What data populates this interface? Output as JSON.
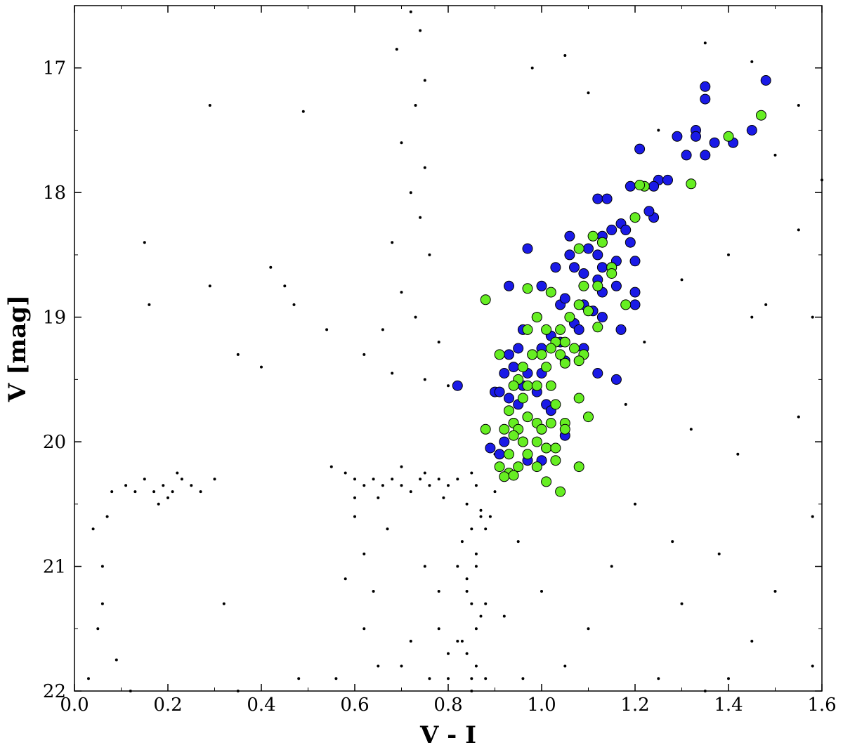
{
  "chart_data": {
    "type": "scatter",
    "xlabel": "V - I",
    "ylabel": "V [mag]",
    "xlim": [
      0.0,
      1.6
    ],
    "ylim": [
      22.0,
      16.5
    ],
    "y_inverted": true,
    "x_ticks": [
      "0.0",
      "0.2",
      "0.4",
      "0.6",
      "0.8",
      "1.0",
      "1.2",
      "1.4",
      "1.6"
    ],
    "y_ticks": [
      "17",
      "18",
      "19",
      "20",
      "21",
      "22"
    ],
    "grid": false,
    "legend": "none",
    "series": [
      {
        "color": "#000000",
        "marker": "small dot",
        "points": [
          [
            0.72,
            16.55
          ],
          [
            0.74,
            16.7
          ],
          [
            0.69,
            16.85
          ],
          [
            0.75,
            17.1
          ],
          [
            0.73,
            17.3
          ],
          [
            0.7,
            17.6
          ],
          [
            0.75,
            17.8
          ],
          [
            0.72,
            18.0
          ],
          [
            0.74,
            18.2
          ],
          [
            0.68,
            18.4
          ],
          [
            0.76,
            18.5
          ],
          [
            0.7,
            18.8
          ],
          [
            0.73,
            19.0
          ],
          [
            0.66,
            19.1
          ],
          [
            0.78,
            19.2
          ],
          [
            0.62,
            19.3
          ],
          [
            0.68,
            19.45
          ],
          [
            0.75,
            19.5
          ],
          [
            0.8,
            19.55
          ],
          [
            0.58,
            20.25
          ],
          [
            0.6,
            20.3
          ],
          [
            0.62,
            20.35
          ],
          [
            0.64,
            20.3
          ],
          [
            0.66,
            20.35
          ],
          [
            0.68,
            20.3
          ],
          [
            0.7,
            20.35
          ],
          [
            0.72,
            20.4
          ],
          [
            0.74,
            20.3
          ],
          [
            0.76,
            20.35
          ],
          [
            0.78,
            20.3
          ],
          [
            0.8,
            20.35
          ],
          [
            0.82,
            20.3
          ],
          [
            0.55,
            20.2
          ],
          [
            0.65,
            20.45
          ],
          [
            0.75,
            20.25
          ],
          [
            0.85,
            20.25
          ],
          [
            0.6,
            20.45
          ],
          [
            0.7,
            20.2
          ],
          [
            0.79,
            20.45
          ],
          [
            0.84,
            20.5
          ],
          [
            0.85,
            20.7
          ],
          [
            0.86,
            20.9
          ],
          [
            0.84,
            21.1
          ],
          [
            0.85,
            21.3
          ],
          [
            0.86,
            21.5
          ],
          [
            0.84,
            21.7
          ],
          [
            0.85,
            21.9
          ],
          [
            0.87,
            20.6
          ],
          [
            0.83,
            20.8
          ],
          [
            0.86,
            21.0
          ],
          [
            0.84,
            21.2
          ],
          [
            0.87,
            21.4
          ],
          [
            0.83,
            21.6
          ],
          [
            0.86,
            21.8
          ],
          [
            0.85,
            22.0
          ],
          [
            0.88,
            20.7
          ],
          [
            0.82,
            21.0
          ],
          [
            0.88,
            21.3
          ],
          [
            0.82,
            21.6
          ],
          [
            0.88,
            21.9
          ],
          [
            0.9,
            20.4
          ],
          [
            0.89,
            20.6
          ],
          [
            0.87,
            20.55
          ],
          [
            0.86,
            20.35
          ],
          [
            0.9,
            20.1
          ],
          [
            0.78,
            21.5
          ],
          [
            0.8,
            21.7
          ],
          [
            0.76,
            21.9
          ],
          [
            0.8,
            21.9
          ],
          [
            0.78,
            21.2
          ],
          [
            0.75,
            21.0
          ],
          [
            0.7,
            21.8
          ],
          [
            0.72,
            21.6
          ],
          [
            0.6,
            20.6
          ],
          [
            0.62,
            20.9
          ],
          [
            0.64,
            21.2
          ],
          [
            0.62,
            21.5
          ],
          [
            0.65,
            21.8
          ],
          [
            0.58,
            21.1
          ],
          [
            0.67,
            20.7
          ],
          [
            0.56,
            21.9
          ],
          [
            0.08,
            20.4
          ],
          [
            0.11,
            20.35
          ],
          [
            0.13,
            20.4
          ],
          [
            0.15,
            20.3
          ],
          [
            0.17,
            20.4
          ],
          [
            0.19,
            20.35
          ],
          [
            0.21,
            20.4
          ],
          [
            0.23,
            20.3
          ],
          [
            0.25,
            20.35
          ],
          [
            0.27,
            20.4
          ],
          [
            0.2,
            20.45
          ],
          [
            0.22,
            20.25
          ],
          [
            0.18,
            20.5
          ],
          [
            0.04,
            20.7
          ],
          [
            0.06,
            21.0
          ],
          [
            0.05,
            21.5
          ],
          [
            0.09,
            21.75
          ],
          [
            0.03,
            21.9
          ],
          [
            0.07,
            20.6
          ],
          [
            0.06,
            21.3
          ],
          [
            0.15,
            18.4
          ],
          [
            0.16,
            18.9
          ],
          [
            0.29,
            17.3
          ],
          [
            0.29,
            18.75
          ],
          [
            0.42,
            18.6
          ],
          [
            0.45,
            18.75
          ],
          [
            0.49,
            17.35
          ],
          [
            0.47,
            18.9
          ],
          [
            0.54,
            19.1
          ],
          [
            0.4,
            19.4
          ],
          [
            0.35,
            19.3
          ],
          [
            0.98,
            17.0
          ],
          [
            1.05,
            16.9
          ],
          [
            1.1,
            17.2
          ],
          [
            1.25,
            17.5
          ],
          [
            1.35,
            16.8
          ],
          [
            1.45,
            16.95
          ],
          [
            1.5,
            17.7
          ],
          [
            1.55,
            18.3
          ],
          [
            1.58,
            19.0
          ],
          [
            1.55,
            19.8
          ],
          [
            1.58,
            20.6
          ],
          [
            1.5,
            21.2
          ],
          [
            1.45,
            21.6
          ],
          [
            1.4,
            21.9
          ],
          [
            1.35,
            22.0
          ],
          [
            1.2,
            20.5
          ],
          [
            1.15,
            21.0
          ],
          [
            1.1,
            21.5
          ],
          [
            1.05,
            21.8
          ],
          [
            1.0,
            21.2
          ],
          [
            1.25,
            21.9
          ],
          [
            1.3,
            21.3
          ],
          [
            1.28,
            20.8
          ],
          [
            1.32,
            19.9
          ],
          [
            1.45,
            19.0
          ],
          [
            1.4,
            18.5
          ],
          [
            1.3,
            18.7
          ],
          [
            1.22,
            19.2
          ],
          [
            1.18,
            19.7
          ],
          [
            0.95,
            20.8
          ],
          [
            0.92,
            21.4
          ],
          [
            0.96,
            21.9
          ],
          [
            0.35,
            22.0
          ],
          [
            0.48,
            21.9
          ],
          [
            0.3,
            20.3
          ],
          [
            0.32,
            21.3
          ],
          [
            0.12,
            22.0
          ],
          [
            1.58,
            21.8
          ],
          [
            1.6,
            17.9
          ],
          [
            1.55,
            17.3
          ],
          [
            1.48,
            18.9
          ],
          [
            1.42,
            20.1
          ],
          [
            1.38,
            20.9
          ]
        ]
      },
      {
        "color": "#1a1ae6",
        "marker": "large circle",
        "points": [
          [
            1.35,
            17.15
          ],
          [
            1.35,
            17.25
          ],
          [
            1.48,
            17.1
          ],
          [
            1.29,
            17.55
          ],
          [
            1.33,
            17.5
          ],
          [
            1.33,
            17.55
          ],
          [
            1.37,
            17.6
          ],
          [
            1.41,
            17.6
          ],
          [
            1.45,
            17.5
          ],
          [
            1.31,
            17.7
          ],
          [
            1.35,
            17.7
          ],
          [
            1.21,
            17.65
          ],
          [
            1.25,
            17.9
          ],
          [
            1.24,
            17.95
          ],
          [
            1.27,
            17.9
          ],
          [
            1.19,
            17.95
          ],
          [
            1.12,
            18.05
          ],
          [
            1.14,
            18.05
          ],
          [
            1.24,
            18.2
          ],
          [
            1.23,
            18.15
          ],
          [
            1.17,
            18.25
          ],
          [
            1.15,
            18.3
          ],
          [
            1.13,
            18.35
          ],
          [
            1.19,
            18.4
          ],
          [
            1.18,
            18.3
          ],
          [
            1.12,
            18.5
          ],
          [
            1.06,
            18.35
          ],
          [
            1.06,
            18.5
          ],
          [
            1.07,
            18.6
          ],
          [
            1.1,
            18.45
          ],
          [
            1.13,
            18.6
          ],
          [
            1.12,
            18.7
          ],
          [
            1.16,
            18.55
          ],
          [
            1.15,
            18.6
          ],
          [
            1.2,
            18.55
          ],
          [
            1.09,
            18.65
          ],
          [
            0.97,
            18.45
          ],
          [
            1.03,
            18.6
          ],
          [
            0.93,
            18.75
          ],
          [
            1.0,
            18.75
          ],
          [
            1.04,
            18.9
          ],
          [
            1.05,
            18.85
          ],
          [
            1.09,
            18.9
          ],
          [
            1.13,
            18.8
          ],
          [
            1.16,
            18.75
          ],
          [
            1.11,
            18.95
          ],
          [
            1.2,
            18.8
          ],
          [
            1.2,
            18.9
          ],
          [
            1.17,
            19.1
          ],
          [
            1.13,
            19.0
          ],
          [
            1.07,
            19.05
          ],
          [
            0.96,
            19.1
          ],
          [
            0.99,
            19.0
          ],
          [
            1.02,
            19.15
          ],
          [
            1.04,
            19.2
          ],
          [
            1.08,
            19.1
          ],
          [
            1.05,
            19.35
          ],
          [
            0.95,
            19.25
          ],
          [
            0.93,
            19.3
          ],
          [
            0.98,
            19.3
          ],
          [
            1.0,
            19.25
          ],
          [
            1.09,
            19.25
          ],
          [
            0.94,
            19.4
          ],
          [
            0.97,
            19.45
          ],
          [
            0.92,
            19.45
          ],
          [
            1.0,
            19.45
          ],
          [
            0.96,
            19.55
          ],
          [
            0.99,
            19.6
          ],
          [
            0.93,
            19.65
          ],
          [
            0.95,
            19.7
          ],
          [
            1.01,
            19.7
          ],
          [
            0.9,
            19.6
          ],
          [
            0.82,
            19.55
          ],
          [
            0.91,
            19.6
          ],
          [
            0.97,
            19.8
          ],
          [
            0.94,
            19.85
          ],
          [
            1.0,
            19.9
          ],
          [
            1.02,
            19.75
          ],
          [
            0.96,
            20.0
          ],
          [
            0.92,
            20.0
          ],
          [
            1.01,
            20.05
          ],
          [
            0.89,
            20.05
          ],
          [
            0.97,
            20.15
          ],
          [
            0.91,
            20.1
          ],
          [
            1.0,
            20.15
          ],
          [
            1.05,
            19.95
          ],
          [
            1.12,
            19.45
          ],
          [
            1.16,
            19.5
          ]
        ]
      },
      {
        "color": "#66ee22",
        "marker": "large circle",
        "points": [
          [
            1.47,
            17.38
          ],
          [
            1.4,
            17.55
          ],
          [
            1.32,
            17.93
          ],
          [
            1.22,
            17.95
          ],
          [
            1.21,
            17.94
          ],
          [
            1.2,
            18.2
          ],
          [
            1.11,
            18.35
          ],
          [
            1.13,
            18.4
          ],
          [
            1.08,
            18.45
          ],
          [
            1.15,
            18.6
          ],
          [
            1.15,
            18.65
          ],
          [
            1.12,
            18.75
          ],
          [
            1.09,
            18.75
          ],
          [
            1.18,
            18.9
          ],
          [
            1.02,
            18.8
          ],
          [
            0.97,
            18.77
          ],
          [
            0.88,
            18.86
          ],
          [
            1.08,
            18.9
          ],
          [
            1.1,
            18.95
          ],
          [
            1.06,
            19.0
          ],
          [
            0.99,
            19.0
          ],
          [
            1.12,
            19.08
          ],
          [
            0.97,
            19.1
          ],
          [
            1.01,
            19.1
          ],
          [
            1.04,
            19.1
          ],
          [
            1.03,
            19.2
          ],
          [
            1.05,
            19.2
          ],
          [
            1.02,
            19.25
          ],
          [
            1.0,
            19.3
          ],
          [
            0.98,
            19.3
          ],
          [
            1.04,
            19.3
          ],
          [
            1.07,
            19.25
          ],
          [
            1.09,
            19.3
          ],
          [
            1.08,
            19.35
          ],
          [
            1.05,
            19.37
          ],
          [
            1.01,
            19.4
          ],
          [
            0.96,
            19.4
          ],
          [
            0.91,
            19.3
          ],
          [
            0.95,
            19.5
          ],
          [
            0.94,
            19.55
          ],
          [
            0.97,
            19.55
          ],
          [
            0.99,
            19.55
          ],
          [
            1.02,
            19.55
          ],
          [
            0.96,
            19.65
          ],
          [
            1.03,
            19.7
          ],
          [
            1.08,
            19.65
          ],
          [
            0.93,
            19.75
          ],
          [
            0.94,
            19.85
          ],
          [
            0.97,
            19.8
          ],
          [
            0.99,
            19.85
          ],
          [
            1.02,
            19.85
          ],
          [
            1.05,
            19.85
          ],
          [
            1.1,
            19.8
          ],
          [
            0.95,
            19.9
          ],
          [
            1.0,
            19.9
          ],
          [
            1.05,
            19.9
          ],
          [
            0.92,
            19.9
          ],
          [
            0.88,
            19.9
          ],
          [
            0.94,
            19.95
          ],
          [
            0.96,
            20.0
          ],
          [
            0.99,
            20.0
          ],
          [
            1.01,
            20.05
          ],
          [
            0.97,
            20.1
          ],
          [
            0.93,
            20.1
          ],
          [
            1.03,
            20.05
          ],
          [
            0.95,
            20.2
          ],
          [
            0.99,
            20.2
          ],
          [
            1.03,
            20.15
          ],
          [
            1.08,
            20.2
          ],
          [
            0.91,
            20.2
          ],
          [
            0.93,
            20.25
          ],
          [
            0.92,
            20.28
          ],
          [
            0.94,
            20.27
          ],
          [
            1.01,
            20.32
          ],
          [
            1.04,
            20.4
          ]
        ]
      }
    ]
  }
}
